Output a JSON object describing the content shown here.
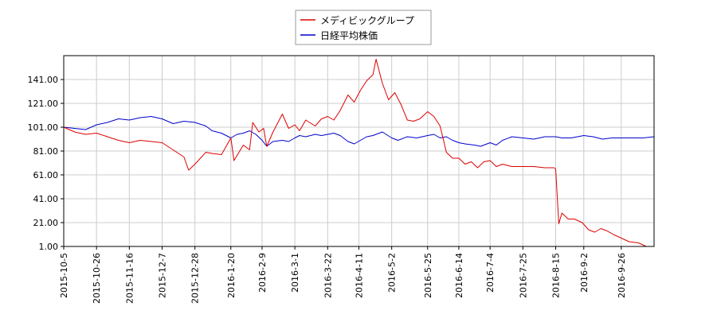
{
  "chart_data": {
    "type": "line",
    "title": "",
    "xlabel": "",
    "ylabel": "",
    "ylim": [
      1.0,
      161.0
    ],
    "yticks": [
      1.0,
      21.0,
      41.0,
      61.0,
      81.0,
      101.0,
      121.0,
      141.0
    ],
    "ytick_labels": [
      "1.00",
      "21.00",
      "41.00",
      "61.00",
      "81.00",
      "101.00",
      "121.00",
      "141.00"
    ],
    "xlim": [
      "2015-10-05",
      "2016-10-17"
    ],
    "xticks": [
      "2015-10-5",
      "2015-10-26",
      "2015-11-16",
      "2015-12-7",
      "2015-12-28",
      "2016-1-20",
      "2016-2-9",
      "2016-3-1",
      "2016-3-22",
      "2016-4-11",
      "2016-5-2",
      "2016-5-25",
      "2016-6-14",
      "2016-7-4",
      "2016-7-25",
      "2016-8-15",
      "2016-9-2",
      "2016-9-26"
    ],
    "xtick_dates": [
      "2015-10-05",
      "2015-10-26",
      "2015-11-16",
      "2015-12-07",
      "2015-12-28",
      "2016-01-20",
      "2016-02-09",
      "2016-03-01",
      "2016-03-22",
      "2016-04-11",
      "2016-05-02",
      "2016-05-25",
      "2016-06-14",
      "2016-07-04",
      "2016-07-25",
      "2016-08-15",
      "2016-09-02",
      "2016-09-26"
    ],
    "grid": true,
    "legend_position": "top-center",
    "series": [
      {
        "name": "メディビックグループ",
        "color": "#dd0000",
        "points": [
          [
            "2015-10-05",
            101
          ],
          [
            "2015-10-12",
            97
          ],
          [
            "2015-10-19",
            95
          ],
          [
            "2015-10-26",
            96
          ],
          [
            "2015-11-02",
            93
          ],
          [
            "2015-11-09",
            90
          ],
          [
            "2015-11-16",
            88
          ],
          [
            "2015-11-23",
            90
          ],
          [
            "2015-11-30",
            89
          ],
          [
            "2015-12-07",
            88
          ],
          [
            "2015-12-14",
            82
          ],
          [
            "2015-12-21",
            76
          ],
          [
            "2015-12-24",
            65
          ],
          [
            "2015-12-28",
            70
          ],
          [
            "2016-01-04",
            80
          ],
          [
            "2016-01-08",
            79
          ],
          [
            "2016-01-14",
            78
          ],
          [
            "2016-01-20",
            92
          ],
          [
            "2016-01-22",
            73
          ],
          [
            "2016-01-28",
            86
          ],
          [
            "2016-02-01",
            82
          ],
          [
            "2016-02-03",
            105
          ],
          [
            "2016-02-07",
            97
          ],
          [
            "2016-02-10",
            100
          ],
          [
            "2016-02-12",
            85
          ],
          [
            "2016-02-16",
            97
          ],
          [
            "2016-02-22",
            112
          ],
          [
            "2016-02-26",
            100
          ],
          [
            "2016-03-01",
            103
          ],
          [
            "2016-03-04",
            98
          ],
          [
            "2016-03-08",
            107
          ],
          [
            "2016-03-14",
            102
          ],
          [
            "2016-03-18",
            108
          ],
          [
            "2016-03-22",
            110
          ],
          [
            "2016-03-26",
            107
          ],
          [
            "2016-03-30",
            115
          ],
          [
            "2016-04-04",
            128
          ],
          [
            "2016-04-08",
            122
          ],
          [
            "2016-04-12",
            132
          ],
          [
            "2016-04-16",
            140
          ],
          [
            "2016-04-20",
            145
          ],
          [
            "2016-04-22",
            158
          ],
          [
            "2016-04-26",
            138
          ],
          [
            "2016-04-30",
            124
          ],
          [
            "2016-05-04",
            130
          ],
          [
            "2016-05-08",
            120
          ],
          [
            "2016-05-12",
            107
          ],
          [
            "2016-05-16",
            106
          ],
          [
            "2016-05-20",
            108
          ],
          [
            "2016-05-25",
            114
          ],
          [
            "2016-05-29",
            110
          ],
          [
            "2016-06-02",
            102
          ],
          [
            "2016-06-06",
            80
          ],
          [
            "2016-06-10",
            75
          ],
          [
            "2016-06-14",
            75
          ],
          [
            "2016-06-18",
            70
          ],
          [
            "2016-06-22",
            72
          ],
          [
            "2016-06-26",
            67
          ],
          [
            "2016-06-30",
            72
          ],
          [
            "2016-07-04",
            73
          ],
          [
            "2016-07-08",
            68
          ],
          [
            "2016-07-12",
            70
          ],
          [
            "2016-07-18",
            68
          ],
          [
            "2016-07-25",
            68
          ],
          [
            "2016-08-01",
            68
          ],
          [
            "2016-08-08",
            67
          ],
          [
            "2016-08-14",
            67
          ],
          [
            "2016-08-15",
            66
          ],
          [
            "2016-08-17",
            20
          ],
          [
            "2016-08-19",
            29
          ],
          [
            "2016-08-23",
            24
          ],
          [
            "2016-08-27",
            24
          ],
          [
            "2016-09-01",
            21
          ],
          [
            "2016-09-05",
            15
          ],
          [
            "2016-09-09",
            13
          ],
          [
            "2016-09-13",
            16
          ],
          [
            "2016-09-17",
            14
          ],
          [
            "2016-09-21",
            11
          ],
          [
            "2016-09-26",
            8
          ],
          [
            "2016-10-01",
            5
          ],
          [
            "2016-10-07",
            4
          ],
          [
            "2016-10-12",
            1
          ]
        ]
      },
      {
        "name": "日経平均株価",
        "color": "#0000cc",
        "points": [
          [
            "2015-10-05",
            101
          ],
          [
            "2015-10-12",
            100
          ],
          [
            "2015-10-19",
            99
          ],
          [
            "2015-10-26",
            103
          ],
          [
            "2015-11-02",
            105
          ],
          [
            "2015-11-09",
            108
          ],
          [
            "2015-11-16",
            107
          ],
          [
            "2015-11-23",
            109
          ],
          [
            "2015-11-30",
            110
          ],
          [
            "2015-12-07",
            108
          ],
          [
            "2015-12-14",
            104
          ],
          [
            "2015-12-21",
            106
          ],
          [
            "2015-12-28",
            105
          ],
          [
            "2016-01-04",
            102
          ],
          [
            "2016-01-08",
            98
          ],
          [
            "2016-01-14",
            96
          ],
          [
            "2016-01-20",
            92
          ],
          [
            "2016-01-24",
            95
          ],
          [
            "2016-01-28",
            96
          ],
          [
            "2016-02-01",
            98
          ],
          [
            "2016-02-05",
            95
          ],
          [
            "2016-02-09",
            90
          ],
          [
            "2016-02-12",
            85
          ],
          [
            "2016-02-16",
            89
          ],
          [
            "2016-02-22",
            90
          ],
          [
            "2016-02-26",
            89
          ],
          [
            "2016-03-01",
            92
          ],
          [
            "2016-03-04",
            94
          ],
          [
            "2016-03-08",
            93
          ],
          [
            "2016-03-14",
            95
          ],
          [
            "2016-03-18",
            94
          ],
          [
            "2016-03-22",
            95
          ],
          [
            "2016-03-26",
            96
          ],
          [
            "2016-03-30",
            94
          ],
          [
            "2016-04-04",
            89
          ],
          [
            "2016-04-08",
            87
          ],
          [
            "2016-04-12",
            90
          ],
          [
            "2016-04-16",
            93
          ],
          [
            "2016-04-20",
            94
          ],
          [
            "2016-04-26",
            97
          ],
          [
            "2016-05-02",
            92
          ],
          [
            "2016-05-06",
            90
          ],
          [
            "2016-05-12",
            93
          ],
          [
            "2016-05-18",
            92
          ],
          [
            "2016-05-25",
            94
          ],
          [
            "2016-05-29",
            95
          ],
          [
            "2016-06-02",
            92
          ],
          [
            "2016-06-06",
            93
          ],
          [
            "2016-06-10",
            90
          ],
          [
            "2016-06-14",
            88
          ],
          [
            "2016-06-18",
            87
          ],
          [
            "2016-06-24",
            86
          ],
          [
            "2016-06-28",
            85
          ],
          [
            "2016-07-04",
            88
          ],
          [
            "2016-07-08",
            86
          ],
          [
            "2016-07-12",
            90
          ],
          [
            "2016-07-18",
            93
          ],
          [
            "2016-07-25",
            92
          ],
          [
            "2016-08-01",
            91
          ],
          [
            "2016-08-08",
            93
          ],
          [
            "2016-08-15",
            93
          ],
          [
            "2016-08-19",
            92
          ],
          [
            "2016-08-25",
            92
          ],
          [
            "2016-09-02",
            94
          ],
          [
            "2016-09-08",
            93
          ],
          [
            "2016-09-14",
            91
          ],
          [
            "2016-09-20",
            92
          ],
          [
            "2016-09-26",
            92
          ],
          [
            "2016-10-03",
            92
          ],
          [
            "2016-10-10",
            92
          ],
          [
            "2016-10-17",
            93
          ]
        ]
      }
    ]
  }
}
